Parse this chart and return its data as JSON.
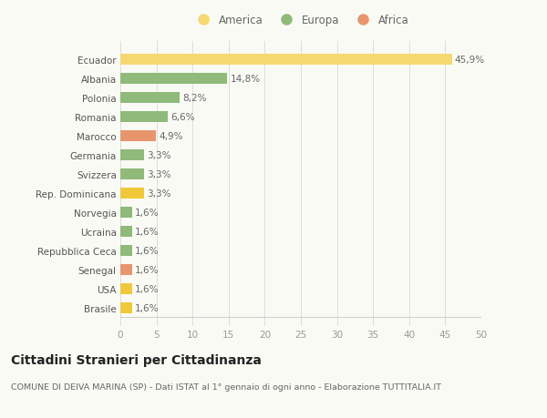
{
  "categories": [
    "Brasile",
    "USA",
    "Senegal",
    "Repubblica Ceca",
    "Ucraina",
    "Norvegia",
    "Rep. Dominicana",
    "Svizzera",
    "Germania",
    "Marocco",
    "Romania",
    "Polonia",
    "Albania",
    "Ecuador"
  ],
  "values": [
    1.6,
    1.6,
    1.6,
    1.6,
    1.6,
    1.6,
    3.3,
    3.3,
    3.3,
    4.9,
    6.6,
    8.2,
    14.8,
    45.9
  ],
  "labels": [
    "1,6%",
    "1,6%",
    "1,6%",
    "1,6%",
    "1,6%",
    "1,6%",
    "3,3%",
    "3,3%",
    "3,3%",
    "4,9%",
    "6,6%",
    "8,2%",
    "14,8%",
    "45,9%"
  ],
  "colors": [
    "#f0c93a",
    "#f0c93a",
    "#e8956d",
    "#8fba7a",
    "#8fba7a",
    "#8fba7a",
    "#f0c93a",
    "#8fba7a",
    "#8fba7a",
    "#e8956d",
    "#8fba7a",
    "#8fba7a",
    "#8fba7a",
    "#f5d870"
  ],
  "legend_labels": [
    "America",
    "Europa",
    "Africa"
  ],
  "legend_colors": [
    "#f5d870",
    "#8fba7a",
    "#e8956d"
  ],
  "xlim": [
    0,
    50
  ],
  "xticks": [
    0,
    5,
    10,
    15,
    20,
    25,
    30,
    35,
    40,
    45,
    50
  ],
  "title": "Cittadini Stranieri per Cittadinanza",
  "subtitle": "COMUNE DI DEIVA MARINA (SP) - Dati ISTAT al 1° gennaio di ogni anno - Elaborazione TUTTITALIA.IT",
  "bg_color": "#fafaf5",
  "label_fontsize": 7.5,
  "tick_fontsize": 7.5,
  "ytick_fontsize": 7.5,
  "title_fontsize": 10,
  "subtitle_fontsize": 6.8
}
